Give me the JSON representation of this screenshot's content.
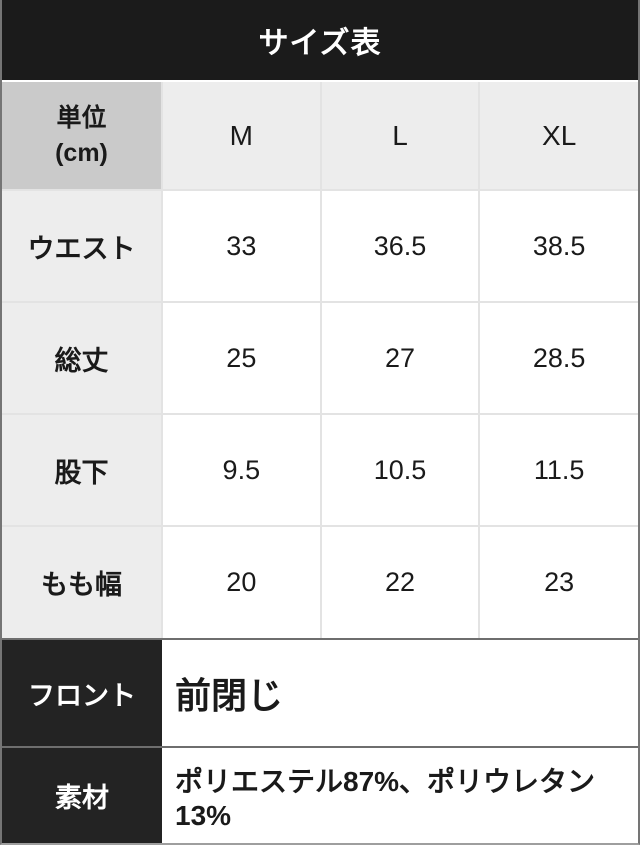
{
  "header": {
    "title": "サイズ表"
  },
  "size_table": {
    "unit_label_line1": "単位",
    "unit_label_line2": "(cm)",
    "columns": [
      "M",
      "L",
      "XL"
    ],
    "rows": [
      {
        "label": "ウエスト",
        "values": [
          "33",
          "36.5",
          "38.5"
        ]
      },
      {
        "label": "総丈",
        "values": [
          "25",
          "27",
          "28.5"
        ]
      },
      {
        "label": "股下",
        "values": [
          "9.5",
          "10.5",
          "11.5"
        ]
      },
      {
        "label": "もも幅",
        "values": [
          "20",
          "22",
          "23"
        ]
      }
    ]
  },
  "spec_rows": [
    {
      "label": "フロント",
      "value": "前閉じ"
    },
    {
      "label": "素材",
      "value": "ポリエステル87%、ポリウレタン13%"
    }
  ],
  "chart_data": {
    "type": "table",
    "title": "サイズ表",
    "unit": "cm",
    "categories": [
      "M",
      "L",
      "XL"
    ],
    "series": [
      {
        "name": "ウエスト",
        "values": [
          33,
          36.5,
          38.5
        ]
      },
      {
        "name": "総丈",
        "values": [
          25,
          27,
          28.5
        ]
      },
      {
        "name": "股下",
        "values": [
          9.5,
          10.5,
          11.5
        ]
      },
      {
        "name": "もも幅",
        "values": [
          20,
          22,
          23
        ]
      }
    ]
  },
  "colors": {
    "title_bar_bg": "#1b1b1b",
    "unit_cell_bg": "#cacaca",
    "label_cell_bg": "#ededed",
    "table_line": "#e3e3e3",
    "spec_divider": "#6e6e6e",
    "spec_label_bg": "#232323",
    "text": "#1a1a1a",
    "text_inverse": "#ffffff"
  }
}
